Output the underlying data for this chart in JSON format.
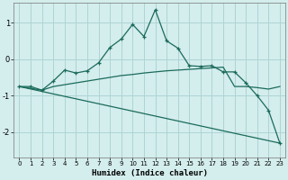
{
  "xlabel": "Humidex (Indice chaleur)",
  "background_color": "#d4eded",
  "grid_color": "#aed4d4",
  "line_color": "#1a6b5a",
  "xlim": [
    -0.5,
    23.5
  ],
  "ylim": [
    -2.7,
    1.55
  ],
  "yticks": [
    -2,
    -1,
    0,
    1
  ],
  "xticks": [
    0,
    1,
    2,
    3,
    4,
    5,
    6,
    7,
    8,
    9,
    10,
    11,
    12,
    13,
    14,
    15,
    16,
    17,
    18,
    19,
    20,
    21,
    22,
    23
  ],
  "line1_x": [
    0,
    1,
    2,
    3,
    4,
    5,
    6,
    7,
    8,
    9,
    10,
    11,
    12,
    13,
    14,
    15,
    16,
    17,
    18,
    19,
    20,
    21,
    22,
    23
  ],
  "line1_y": [
    -0.75,
    -0.75,
    -0.85,
    -0.6,
    -0.3,
    -0.38,
    -0.32,
    -0.1,
    0.32,
    0.55,
    0.95,
    0.62,
    1.35,
    0.5,
    0.3,
    -0.18,
    -0.2,
    -0.18,
    -0.35,
    -0.35,
    -0.65,
    -1.0,
    -1.4,
    -2.3
  ],
  "line2_x": [
    0,
    2,
    3,
    4,
    5,
    6,
    7,
    8,
    9,
    10,
    11,
    12,
    13,
    14,
    15,
    16,
    17,
    18,
    19,
    20,
    21,
    22,
    23
  ],
  "line2_y": [
    -0.75,
    -0.85,
    -0.75,
    -0.7,
    -0.65,
    -0.6,
    -0.55,
    -0.5,
    -0.45,
    -0.42,
    -0.38,
    -0.35,
    -0.32,
    -0.3,
    -0.28,
    -0.26,
    -0.24,
    -0.22,
    -0.75,
    -0.75,
    -0.78,
    -0.82,
    -0.75
  ],
  "line3_x": [
    0,
    23
  ],
  "line3_y": [
    -0.75,
    -2.3
  ]
}
